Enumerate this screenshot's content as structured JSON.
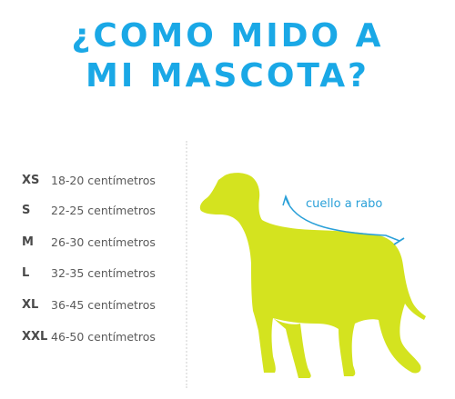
{
  "title": {
    "line1": "¿COMO MIDO A",
    "line2": "MI MASCOTA?"
  },
  "sizes": [
    {
      "code": "XS",
      "range": "18-20 centímetros"
    },
    {
      "code": "S",
      "range": "22-25 centímetros"
    },
    {
      "code": "M",
      "range": "26-30 centímetros"
    },
    {
      "code": "L",
      "range": "32-35 centímetros"
    },
    {
      "code": "XL",
      "range": "36-45 centímetros"
    },
    {
      "code": "XXL",
      "range": "46-50 centímetros"
    }
  ],
  "measure_label": "cuello a rabo",
  "colors": {
    "title": "#1aa8e6",
    "dog": "#d4e31f",
    "arrow": "#2aa0d8",
    "text": "#4a4a4a"
  },
  "icons": {
    "dog": "dog-silhouette-icon",
    "arrow": "measure-arrow-icon"
  }
}
